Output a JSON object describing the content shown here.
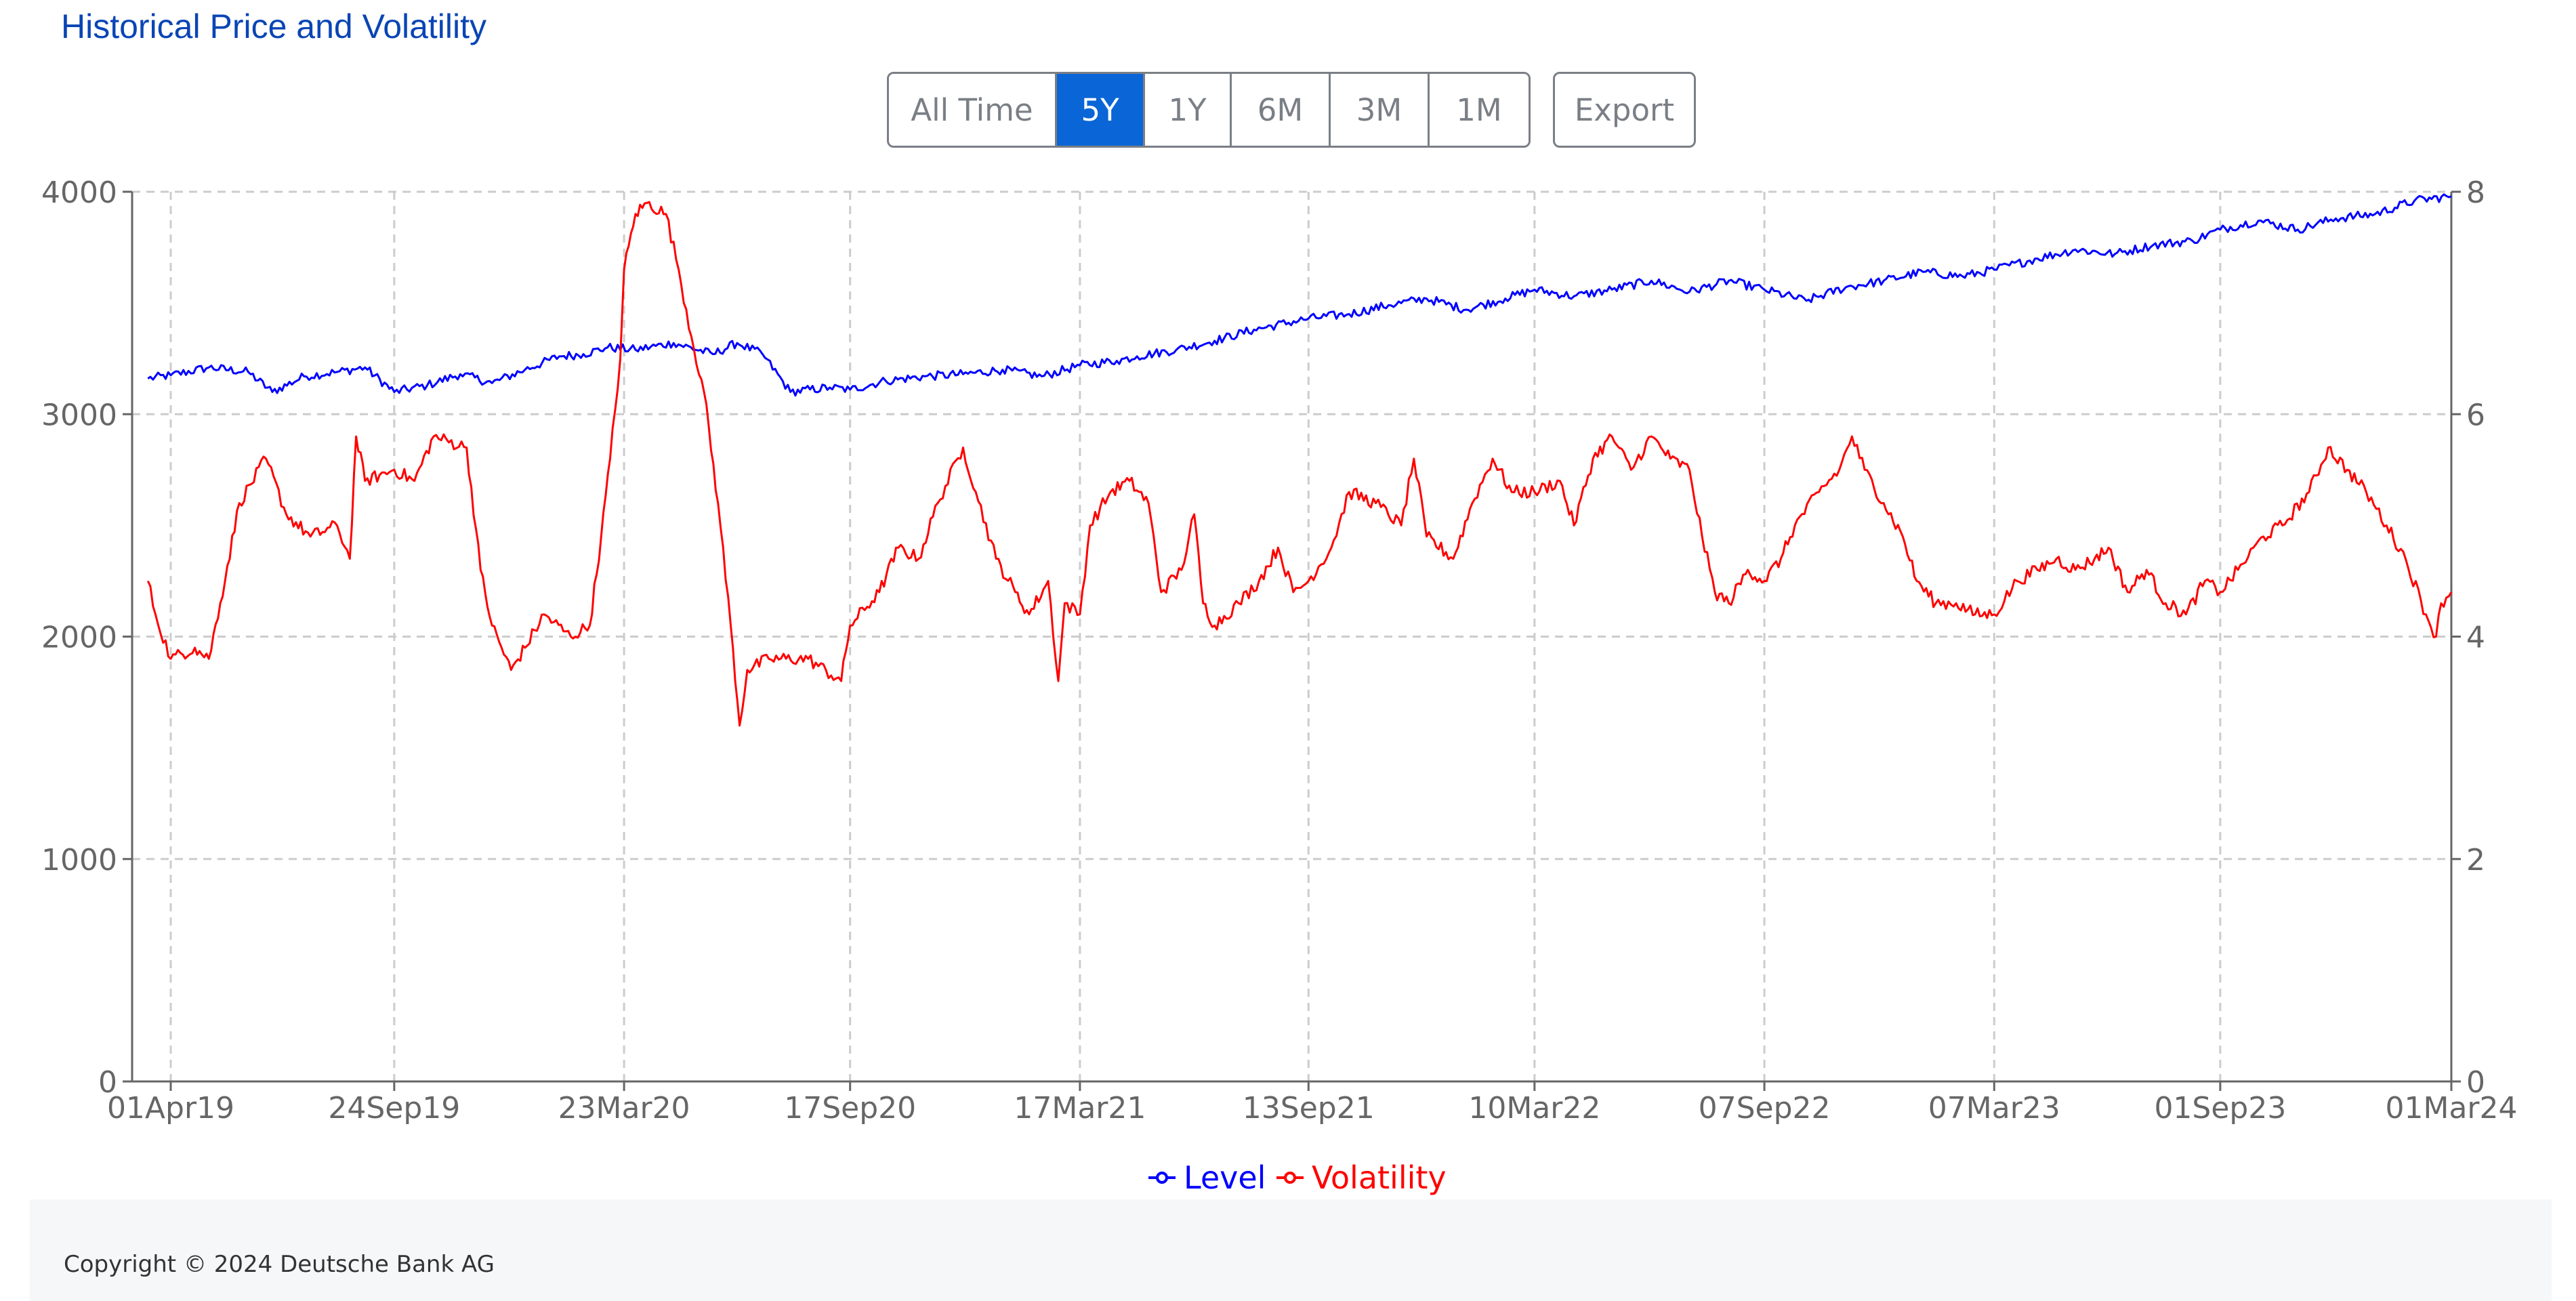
{
  "header": {
    "title": "Historical Price and Volatility"
  },
  "range_buttons": [
    {
      "label": "All Time",
      "active": false
    },
    {
      "label": "5Y",
      "active": true
    },
    {
      "label": "1Y",
      "active": false
    },
    {
      "label": "6M",
      "active": false
    },
    {
      "label": "3M",
      "active": false
    },
    {
      "label": "1M",
      "active": false
    }
  ],
  "export_label": "Export",
  "footer": {
    "copyright": "Copyright © 2024 Deutsche Bank AG"
  },
  "colors": {
    "title": "#0a45b5",
    "active_button": "#0a66d6",
    "level": "#0000ff",
    "volatility": "#ff0000",
    "grid": "#cccccc",
    "axis_text": "#666666"
  },
  "chart_data": {
    "type": "line",
    "grid": true,
    "legend_position": "bottom-center",
    "x_ticks": [
      "01Apr19",
      "24Sep19",
      "23Mar20",
      "17Sep20",
      "17Mar21",
      "13Sep21",
      "10Mar22",
      "07Sep22",
      "07Mar23",
      "01Sep23",
      "01Mar24"
    ],
    "xlim": [
      "2019-03-14",
      "2024-03-01"
    ],
    "y_left": {
      "ticks": [
        0,
        1000,
        2000,
        3000,
        4000
      ],
      "range": [
        0,
        4000
      ]
    },
    "y_right": {
      "ticks": [
        0,
        2,
        4,
        6,
        8
      ],
      "range": [
        0,
        8
      ]
    },
    "series": [
      {
        "name": "Level",
        "axis": "left",
        "color": "#0000ff",
        "points": [
          [
            "2019-03-14",
            3160
          ],
          [
            "2019-04-01",
            3175
          ],
          [
            "2019-05-01",
            3210
          ],
          [
            "2019-06-01",
            3190
          ],
          [
            "2019-06-20",
            3100
          ],
          [
            "2019-07-15",
            3170
          ],
          [
            "2019-08-10",
            3190
          ],
          [
            "2019-09-01",
            3210
          ],
          [
            "2019-09-24",
            3100
          ],
          [
            "2019-10-20",
            3130
          ],
          [
            "2019-11-15",
            3180
          ],
          [
            "2019-12-10",
            3140
          ],
          [
            "2020-01-05",
            3200
          ],
          [
            "2020-02-01",
            3260
          ],
          [
            "2020-02-20",
            3270
          ],
          [
            "2020-03-10",
            3300
          ],
          [
            "2020-04-01",
            3290
          ],
          [
            "2020-05-01",
            3320
          ],
          [
            "2020-06-01",
            3270
          ],
          [
            "2020-06-20",
            3320
          ],
          [
            "2020-07-10",
            3270
          ],
          [
            "2020-08-01",
            3100
          ],
          [
            "2020-09-01",
            3120
          ],
          [
            "2020-09-17",
            3110
          ],
          [
            "2020-10-15",
            3150
          ],
          [
            "2020-11-15",
            3170
          ],
          [
            "2020-12-15",
            3180
          ],
          [
            "2021-01-15",
            3200
          ],
          [
            "2021-02-15",
            3170
          ],
          [
            "2021-03-17",
            3220
          ],
          [
            "2021-04-15",
            3240
          ],
          [
            "2021-05-01",
            3260
          ],
          [
            "2021-06-01",
            3290
          ],
          [
            "2021-07-01",
            3330
          ],
          [
            "2021-08-01",
            3380
          ],
          [
            "2021-09-13",
            3430
          ],
          [
            "2021-10-15",
            3450
          ],
          [
            "2021-11-15",
            3490
          ],
          [
            "2021-12-15",
            3520
          ],
          [
            "2022-01-15",
            3470
          ],
          [
            "2022-02-15",
            3520
          ],
          [
            "2022-03-10",
            3560
          ],
          [
            "2022-04-10",
            3530
          ],
          [
            "2022-05-10",
            3560
          ],
          [
            "2022-06-10",
            3600
          ],
          [
            "2022-07-10",
            3550
          ],
          [
            "2022-08-10",
            3600
          ],
          [
            "2022-09-07",
            3560
          ],
          [
            "2022-10-10",
            3510
          ],
          [
            "2022-11-10",
            3570
          ],
          [
            "2022-12-10",
            3600
          ],
          [
            "2023-01-10",
            3640
          ],
          [
            "2023-02-10",
            3620
          ],
          [
            "2023-03-07",
            3650
          ],
          [
            "2023-04-10",
            3700
          ],
          [
            "2023-05-10",
            3740
          ],
          [
            "2023-06-10",
            3720
          ],
          [
            "2023-07-10",
            3760
          ],
          [
            "2023-08-10",
            3780
          ],
          [
            "2023-09-01",
            3830
          ],
          [
            "2023-10-01",
            3870
          ],
          [
            "2023-11-01",
            3830
          ],
          [
            "2023-12-01",
            3880
          ],
          [
            "2024-01-01",
            3900
          ],
          [
            "2024-02-01",
            3960
          ],
          [
            "2024-03-01",
            3980
          ]
        ]
      },
      {
        "name": "Volatility",
        "axis": "right",
        "color": "#ff0000",
        "points": [
          [
            "2019-03-14",
            4.5
          ],
          [
            "2019-03-20",
            4.2
          ],
          [
            "2019-04-01",
            3.8
          ],
          [
            "2019-04-20",
            3.9
          ],
          [
            "2019-05-01",
            3.8
          ],
          [
            "2019-05-10",
            4.3
          ],
          [
            "2019-05-25",
            5.2
          ],
          [
            "2019-06-15",
            5.6
          ],
          [
            "2019-07-01",
            5.1
          ],
          [
            "2019-07-20",
            4.9
          ],
          [
            "2019-08-10",
            5.0
          ],
          [
            "2019-08-20",
            4.7
          ],
          [
            "2019-08-25",
            5.8
          ],
          [
            "2019-09-01",
            5.4
          ],
          [
            "2019-09-24",
            5.5
          ],
          [
            "2019-10-10",
            5.4
          ],
          [
            "2019-10-25",
            5.8
          ],
          [
            "2019-11-20",
            5.7
          ],
          [
            "2019-12-01",
            4.6
          ],
          [
            "2019-12-10",
            4.1
          ],
          [
            "2019-12-25",
            3.7
          ],
          [
            "2020-01-05",
            3.9
          ],
          [
            "2020-01-20",
            4.2
          ],
          [
            "2020-02-10",
            4.0
          ],
          [
            "2020-02-25",
            4.1
          ],
          [
            "2020-03-05",
            4.9
          ],
          [
            "2020-03-12",
            5.6
          ],
          [
            "2020-03-20",
            6.5
          ],
          [
            "2020-03-23",
            7.3
          ],
          [
            "2020-04-01",
            7.8
          ],
          [
            "2020-04-10",
            7.9
          ],
          [
            "2020-04-25",
            7.8
          ],
          [
            "2020-05-05",
            7.3
          ],
          [
            "2020-05-15",
            6.7
          ],
          [
            "2020-05-25",
            6.2
          ],
          [
            "2020-06-05",
            5.2
          ],
          [
            "2020-06-15",
            4.1
          ],
          [
            "2020-06-22",
            3.2
          ],
          [
            "2020-06-28",
            3.7
          ],
          [
            "2020-07-15",
            3.8
          ],
          [
            "2020-08-15",
            3.8
          ],
          [
            "2020-09-10",
            3.6
          ],
          [
            "2020-09-17",
            4.1
          ],
          [
            "2020-10-10",
            4.4
          ],
          [
            "2020-10-25",
            4.8
          ],
          [
            "2020-11-10",
            4.7
          ],
          [
            "2020-11-25",
            5.2
          ],
          [
            "2020-12-15",
            5.7
          ],
          [
            "2020-12-25",
            5.3
          ],
          [
            "2021-01-10",
            4.7
          ],
          [
            "2021-01-25",
            4.4
          ],
          [
            "2021-02-05",
            4.2
          ],
          [
            "2021-02-20",
            4.5
          ],
          [
            "2021-02-28",
            3.6
          ],
          [
            "2021-03-05",
            4.3
          ],
          [
            "2021-03-17",
            4.2
          ],
          [
            "2021-03-25",
            5.0
          ],
          [
            "2021-04-10",
            5.3
          ],
          [
            "2021-04-25",
            5.4
          ],
          [
            "2021-05-10",
            5.2
          ],
          [
            "2021-05-20",
            4.4
          ],
          [
            "2021-06-05",
            4.6
          ],
          [
            "2021-06-15",
            5.1
          ],
          [
            "2021-06-22",
            4.3
          ],
          [
            "2021-07-01",
            4.1
          ],
          [
            "2021-07-20",
            4.3
          ],
          [
            "2021-08-05",
            4.5
          ],
          [
            "2021-08-20",
            4.8
          ],
          [
            "2021-09-01",
            4.4
          ],
          [
            "2021-09-13",
            4.5
          ],
          [
            "2021-10-01",
            4.8
          ],
          [
            "2021-10-15",
            5.3
          ],
          [
            "2021-11-05",
            5.2
          ],
          [
            "2021-11-25",
            5.0
          ],
          [
            "2021-12-05",
            5.6
          ],
          [
            "2021-12-15",
            4.9
          ],
          [
            "2022-01-05",
            4.7
          ],
          [
            "2022-01-20",
            5.2
          ],
          [
            "2022-02-05",
            5.6
          ],
          [
            "2022-02-20",
            5.3
          ],
          [
            "2022-03-10",
            5.3
          ],
          [
            "2022-03-30",
            5.4
          ],
          [
            "2022-04-10",
            5.0
          ],
          [
            "2022-04-25",
            5.6
          ],
          [
            "2022-05-10",
            5.8
          ],
          [
            "2022-05-25",
            5.5
          ],
          [
            "2022-06-10",
            5.8
          ],
          [
            "2022-06-25",
            5.6
          ],
          [
            "2022-07-10",
            5.5
          ],
          [
            "2022-07-20",
            4.9
          ],
          [
            "2022-07-30",
            4.4
          ],
          [
            "2022-08-10",
            4.3
          ],
          [
            "2022-08-25",
            4.6
          ],
          [
            "2022-09-07",
            4.5
          ],
          [
            "2022-09-20",
            4.7
          ],
          [
            "2022-10-01",
            5.0
          ],
          [
            "2022-10-20",
            5.3
          ],
          [
            "2022-11-05",
            5.5
          ],
          [
            "2022-11-15",
            5.8
          ],
          [
            "2022-11-25",
            5.5
          ],
          [
            "2022-12-10",
            5.2
          ],
          [
            "2022-12-25",
            4.9
          ],
          [
            "2023-01-05",
            4.5
          ],
          [
            "2023-01-20",
            4.3
          ],
          [
            "2023-02-05",
            4.3
          ],
          [
            "2023-02-20",
            4.2
          ],
          [
            "2023-03-07",
            4.2
          ],
          [
            "2023-03-25",
            4.5
          ],
          [
            "2023-04-10",
            4.6
          ],
          [
            "2023-04-25",
            4.7
          ],
          [
            "2023-05-10",
            4.6
          ],
          [
            "2023-05-25",
            4.7
          ],
          [
            "2023-06-05",
            4.8
          ],
          [
            "2023-06-20",
            4.4
          ],
          [
            "2023-07-05",
            4.6
          ],
          [
            "2023-07-20",
            4.3
          ],
          [
            "2023-08-05",
            4.2
          ],
          [
            "2023-08-20",
            4.5
          ],
          [
            "2023-09-01",
            4.4
          ],
          [
            "2023-09-15",
            4.6
          ],
          [
            "2023-10-05",
            4.9
          ],
          [
            "2023-10-20",
            5.0
          ],
          [
            "2023-11-10",
            5.3
          ],
          [
            "2023-11-25",
            5.7
          ],
          [
            "2023-12-10",
            5.5
          ],
          [
            "2023-12-25",
            5.3
          ],
          [
            "2024-01-10",
            5.0
          ],
          [
            "2024-01-25",
            4.7
          ],
          [
            "2024-02-10",
            4.2
          ],
          [
            "2024-02-18",
            4.0
          ],
          [
            "2024-02-22",
            4.3
          ],
          [
            "2024-03-01",
            4.4
          ]
        ]
      }
    ]
  }
}
